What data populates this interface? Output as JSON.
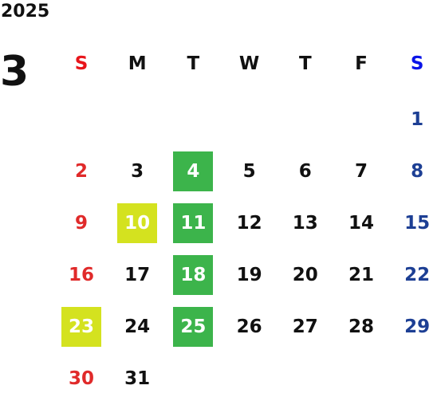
{
  "year": "2025",
  "month": "3",
  "weekdays": [
    {
      "label": "S",
      "color": "#e8151b",
      "day_color": "#e02a2a"
    },
    {
      "label": "M",
      "color": "#111111",
      "day_color": "#111111"
    },
    {
      "label": "T",
      "color": "#111111",
      "day_color": "#111111"
    },
    {
      "label": "W",
      "color": "#111111",
      "day_color": "#111111"
    },
    {
      "label": "T",
      "color": "#111111",
      "day_color": "#111111"
    },
    {
      "label": "F",
      "color": "#111111",
      "day_color": "#111111"
    },
    {
      "label": "S",
      "color": "#0a14e8",
      "day_color": "#1d3f94"
    }
  ],
  "weeks": [
    [
      null,
      null,
      null,
      null,
      null,
      null,
      {
        "day": 1
      }
    ],
    [
      {
        "day": 2
      },
      {
        "day": 3
      },
      {
        "day": 4,
        "highlight": "#3cb44b"
      },
      {
        "day": 5
      },
      {
        "day": 6
      },
      {
        "day": 7
      },
      {
        "day": 8
      }
    ],
    [
      {
        "day": 9
      },
      {
        "day": 10,
        "highlight": "#d4e21f"
      },
      {
        "day": 11,
        "highlight": "#3cb44b"
      },
      {
        "day": 12
      },
      {
        "day": 13
      },
      {
        "day": 14
      },
      {
        "day": 15
      }
    ],
    [
      {
        "day": 16
      },
      {
        "day": 17
      },
      {
        "day": 18,
        "highlight": "#3cb44b"
      },
      {
        "day": 19
      },
      {
        "day": 20
      },
      {
        "day": 21
      },
      {
        "day": 22
      }
    ],
    [
      {
        "day": 23,
        "highlight": "#d4e21f"
      },
      {
        "day": 24
      },
      {
        "day": 25,
        "highlight": "#3cb44b"
      },
      {
        "day": 26
      },
      {
        "day": 27
      },
      {
        "day": 28
      },
      {
        "day": 29
      }
    ],
    [
      {
        "day": 30
      },
      {
        "day": 31
      },
      null,
      null,
      null,
      null,
      null
    ]
  ]
}
